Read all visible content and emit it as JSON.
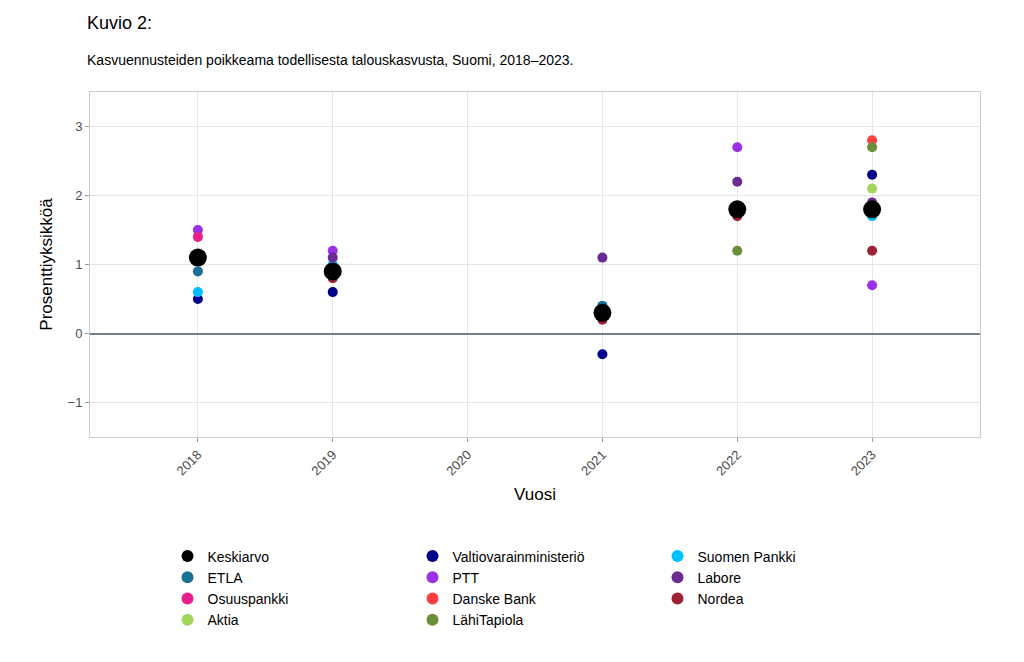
{
  "chart_data": {
    "type": "scatter",
    "title": "Kuvio 2:",
    "subtitle": "Kasvuennusteiden poikkeama todellisesta talouskasvusta, Suomi, 2018–2023.",
    "x_label": "Vuosi",
    "y_label": "Prosenttiyksikköä",
    "x": [
      2018,
      2019,
      2020,
      2021,
      2022,
      2023
    ],
    "xlim": [
      2017.2,
      2023.8
    ],
    "xticks": [
      2018,
      2019,
      2020,
      2021,
      2022,
      2023
    ],
    "ylim": [
      -1.5,
      3.5
    ],
    "yticks": [
      {
        "value": -1,
        "label": "−1"
      },
      0,
      1,
      2,
      3
    ],
    "grid": true,
    "legend": "bottom",
    "series": [
      {
        "name": "Keskiarvo",
        "color": "#000000",
        "values": [
          1.1,
          0.9,
          null,
          0.3,
          1.8,
          1.8
        ]
      },
      {
        "name": "Valtiovarainministeriö",
        "color": "#00008b",
        "values": [
          0.5,
          0.6,
          null,
          -0.3,
          null,
          2.3
        ]
      },
      {
        "name": "Suomen Pankki",
        "color": "#00bfff",
        "values": [
          0.6,
          1.0,
          null,
          0.4,
          null,
          1.7
        ]
      },
      {
        "name": "ETLA",
        "color": "#1a7092",
        "values": [
          0.9,
          null,
          null,
          0.4,
          null,
          null
        ]
      },
      {
        "name": "PTT",
        "color": "#9b30e6",
        "values": [
          1.5,
          1.2,
          null,
          null,
          2.7,
          0.7
        ]
      },
      {
        "name": "Labore",
        "color": "#6a2c91",
        "values": [
          null,
          1.1,
          null,
          1.1,
          2.2,
          1.9
        ]
      },
      {
        "name": "Osuuspankki",
        "color": "#e91e8c",
        "values": [
          1.4,
          0.9,
          null,
          null,
          null,
          null
        ]
      },
      {
        "name": "Danske Bank",
        "color": "#ff4040",
        "values": [
          null,
          null,
          null,
          null,
          null,
          2.8
        ]
      },
      {
        "name": "Nordea",
        "color": "#9b2335",
        "values": [
          null,
          0.8,
          null,
          0.2,
          1.7,
          1.2
        ]
      },
      {
        "name": "Aktia",
        "color": "#a4d65e",
        "values": [
          null,
          null,
          null,
          null,
          null,
          2.1
        ]
      },
      {
        "name": "LähiTapiola",
        "color": "#6b8e3a",
        "values": [
          null,
          null,
          null,
          null,
          1.2,
          2.7
        ]
      }
    ]
  }
}
